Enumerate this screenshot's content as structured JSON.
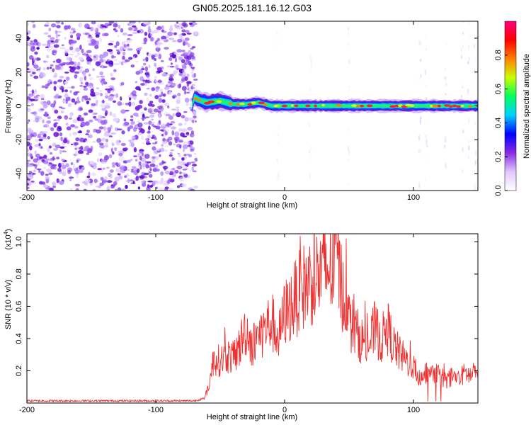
{
  "title": "GN05.2025.181.16.12.G03",
  "chart_data": [
    {
      "type": "heatmap",
      "xlabel": "Height of straight line (km)",
      "ylabel": "Frequency (Hz)",
      "xlim": [
        -200,
        150
      ],
      "ylim": [
        -50,
        50
      ],
      "xticks": [
        -200,
        -100,
        0,
        100
      ],
      "yticks": [
        -40,
        -20,
        0,
        20,
        40
      ],
      "noise_region_x": [
        -200,
        -72
      ],
      "ridge": {
        "frequency": 0,
        "x_start": -72,
        "x_end": 150,
        "points": [
          {
            "x": -70,
            "y": 5
          },
          {
            "x": -65,
            "y": 3
          },
          {
            "x": -60,
            "y": 2
          },
          {
            "x": -50,
            "y": 3
          },
          {
            "x": -40,
            "y": 1
          },
          {
            "x": -30,
            "y": 1
          },
          {
            "x": -20,
            "y": 2
          },
          {
            "x": -10,
            "y": 0
          },
          {
            "x": 0,
            "y": 0
          },
          {
            "x": 50,
            "y": 0
          },
          {
            "x": 100,
            "y": 0
          },
          {
            "x": 150,
            "y": 0
          }
        ]
      },
      "colorbar": {
        "label": "Normalized spectral amplitude",
        "range": [
          0,
          1
        ],
        "ticks": [
          0.0,
          0.2,
          0.4,
          0.6,
          0.8
        ],
        "colors": [
          "#ffffff",
          "#e0c8ff",
          "#8a2be2",
          "#0000ff",
          "#00d0ff",
          "#00ff60",
          "#c8ff00",
          "#ff8000",
          "#ff0000",
          "#ff0080"
        ]
      }
    },
    {
      "type": "line",
      "xlabel": "Height of straight line (km)",
      "ylabel": "SNR (10 * v/v)",
      "scale_label": "(x10",
      "scale_exp": "4",
      "scale_close": ")",
      "xlim": [
        -200,
        150
      ],
      "ylim": [
        0,
        1.05
      ],
      "xticks": [
        -200,
        -100,
        0,
        100
      ],
      "yticks": [
        0.2,
        0.4,
        0.6,
        0.8,
        1.0
      ],
      "series": [
        {
          "color": "#ee3030",
          "x": [
            -200,
            -150,
            -100,
            -70,
            -62,
            -58,
            -55,
            -50,
            -45,
            -40,
            -35,
            -30,
            -25,
            -20,
            -15,
            -10,
            -5,
            0,
            5,
            10,
            15,
            20,
            25,
            30,
            35,
            38,
            40,
            43,
            47,
            50,
            55,
            60,
            65,
            70,
            75,
            80,
            85,
            90,
            95,
            100,
            105,
            110,
            115,
            120,
            125,
            130,
            135,
            140,
            145,
            150
          ],
          "y": [
            0.015,
            0.015,
            0.015,
            0.015,
            0.03,
            0.15,
            0.3,
            0.28,
            0.32,
            0.3,
            0.38,
            0.5,
            0.38,
            0.45,
            0.5,
            0.55,
            0.42,
            0.6,
            0.65,
            0.72,
            0.78,
            0.82,
            0.85,
            0.88,
            0.9,
            0.92,
            1.05,
            0.82,
            0.7,
            0.55,
            0.48,
            0.42,
            0.38,
            0.5,
            0.42,
            0.5,
            0.38,
            0.32,
            0.28,
            0.25,
            0.15,
            0.2,
            0.18,
            0.2,
            0.15,
            0.18,
            0.16,
            0.2,
            0.18,
            0.2
          ]
        }
      ]
    }
  ]
}
